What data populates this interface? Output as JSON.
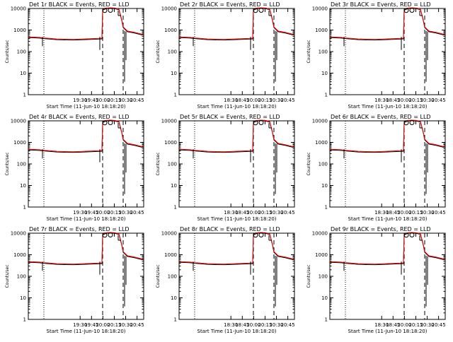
{
  "figure": {
    "background": "#ffffff"
  },
  "chart_data": [
    {
      "type": "line",
      "title": "Det 1r BLACK = Events, RED = LLD",
      "xlabel": "Start Time (11-Jun-10 18:18:20)",
      "ylabel": "Counts/sec",
      "yscale": "log",
      "ylim": [
        1,
        10000
      ],
      "xticks": [
        "19:30",
        "19:45",
        "20:00",
        "20:15",
        "20:30",
        "20:45"
      ],
      "yticks": [
        "1",
        "10",
        "100",
        "1000",
        "10000"
      ],
      "series": [
        {
          "name": "BLACK = Events",
          "color": "#000000"
        },
        {
          "name": "RED = LLD",
          "color": "#ff0000"
        }
      ]
    },
    {
      "type": "line",
      "title": "Det 2r BLACK = Events, RED = LLD",
      "xlabel": "Start Time (11-Jun-10 18:18:20)",
      "ylabel": "Counts/sec",
      "yscale": "log",
      "ylim": [
        1,
        10000
      ],
      "xticks": [
        "18:30",
        "18:45",
        "20:00",
        "20:15",
        "20:30",
        "20:45"
      ],
      "yticks": [
        "1",
        "10",
        "100",
        "1000",
        "10000"
      ],
      "series": [
        {
          "name": "BLACK = Events",
          "color": "#000000"
        },
        {
          "name": "RED = LLD",
          "color": "#ff0000"
        }
      ]
    },
    {
      "type": "line",
      "title": "Det 3r BLACK = Events, RED = LLD",
      "xlabel": "Start Time (11-Jun-10 18:18:20)",
      "ylabel": "Counts/sec",
      "yscale": "log",
      "ylim": [
        1,
        10000
      ],
      "xticks": [
        "18:30",
        "18:45",
        "20:00",
        "20:15",
        "20:30",
        "20:45"
      ],
      "yticks": [
        "1",
        "10",
        "100",
        "1000",
        "10000"
      ],
      "series": [
        {
          "name": "BLACK = Events",
          "color": "#000000"
        },
        {
          "name": "RED = LLD",
          "color": "#ff0000"
        }
      ]
    },
    {
      "type": "line",
      "title": "Det 4r BLACK = Events, RED = LLD",
      "xlabel": "Start Time (11-Jun-10 18:18:20)",
      "ylabel": "Counts/sec",
      "yscale": "log",
      "ylim": [
        1,
        10000
      ],
      "xticks": [
        "19:30",
        "19:45",
        "20:00",
        "20:15",
        "20:30",
        "20:45"
      ],
      "yticks": [
        "1",
        "10",
        "100",
        "1000",
        "10000"
      ],
      "series": [
        {
          "name": "BLACK = Events",
          "color": "#000000"
        },
        {
          "name": "RED = LLD",
          "color": "#ff0000"
        }
      ]
    },
    {
      "type": "line",
      "title": "Det 5r BLACK = Events, RED = LLD",
      "xlabel": "Start Time (11-Jun-10 18:18:20)",
      "ylabel": "Counts/sec",
      "yscale": "log",
      "ylim": [
        1,
        10000
      ],
      "xticks": [
        "18:30",
        "18:45",
        "20:00",
        "20:15",
        "20:30",
        "20:45"
      ],
      "yticks": [
        "1",
        "10",
        "100",
        "1000",
        "10000"
      ],
      "series": [
        {
          "name": "BLACK = Events",
          "color": "#000000"
        },
        {
          "name": "RED = LLD",
          "color": "#ff0000"
        }
      ]
    },
    {
      "type": "line",
      "title": "Det 6r BLACK = Events, RED = LLD",
      "xlabel": "Start Time (11-Jun-10 18:18:20)",
      "ylabel": "Counts/sec",
      "yscale": "log",
      "ylim": [
        1,
        10000
      ],
      "xticks": [
        "18:30",
        "18:45",
        "20:00",
        "20:15",
        "20:30",
        "20:45"
      ],
      "yticks": [
        "1",
        "10",
        "100",
        "1000",
        "10000"
      ],
      "series": [
        {
          "name": "BLACK = Events",
          "color": "#000000"
        },
        {
          "name": "RED = LLD",
          "color": "#ff0000"
        }
      ]
    },
    {
      "type": "line",
      "title": "Det 7r BLACK = Events, RED = LLD",
      "xlabel": "Start Time (11-Jun-10 18:18:20)",
      "ylabel": "Counts/sec",
      "yscale": "log",
      "ylim": [
        1,
        10000
      ],
      "xticks": [
        "19:30",
        "19:45",
        "20:00",
        "20:15",
        "20:30",
        "20:45"
      ],
      "yticks": [
        "1",
        "10",
        "100",
        "1000",
        "10000"
      ],
      "series": [
        {
          "name": "BLACK = Events",
          "color": "#000000"
        },
        {
          "name": "RED = LLD",
          "color": "#ff0000"
        }
      ]
    },
    {
      "type": "line",
      "title": "Det 8r BLACK = Events, RED = LLD",
      "xlabel": "Start Time (11-Jun-10 18:18:20)",
      "ylabel": "Counts/sec",
      "yscale": "log",
      "ylim": [
        1,
        10000
      ],
      "xticks": [
        "18:30",
        "18:45",
        "20:00",
        "20:15",
        "20:30",
        "20:45"
      ],
      "yticks": [
        "1",
        "10",
        "100",
        "1000",
        "10000"
      ],
      "series": [
        {
          "name": "BLACK = Events",
          "color": "#000000"
        },
        {
          "name": "RED = LLD",
          "color": "#ff0000"
        }
      ]
    },
    {
      "type": "line",
      "title": "Det 9r BLACK = Events, RED = LLD",
      "xlabel": "Start Time (11-Jun-10 18:18:20)",
      "ylabel": "Counts/sec",
      "yscale": "log",
      "ylim": [
        1,
        10000
      ],
      "xticks": [
        "18:30",
        "18:45",
        "20:00",
        "20:15",
        "20:30",
        "20:45"
      ],
      "yticks": [
        "1",
        "10",
        "100",
        "1000",
        "10000"
      ],
      "series": [
        {
          "name": "BLACK = Events",
          "color": "#000000"
        },
        {
          "name": "RED = LLD",
          "color": "#ff0000"
        }
      ]
    }
  ]
}
